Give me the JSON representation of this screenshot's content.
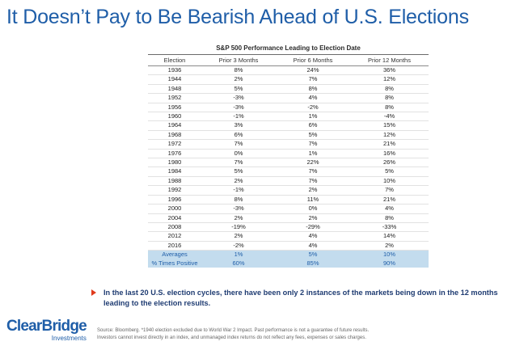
{
  "title": "It Doesn’t Pay to Be Bearish Ahead of U.S. Elections",
  "table": {
    "heading": "S&P 500 Performance Leading to Election Date",
    "columns": [
      "Election",
      "Prior 3 Months",
      "Prior 6 Months",
      "Prior 12 Months"
    ],
    "rows": [
      [
        "1936",
        "8%",
        "24%",
        "36%"
      ],
      [
        "1944",
        "2%",
        "7%",
        "12%"
      ],
      [
        "1948",
        "5%",
        "8%",
        "8%"
      ],
      [
        "1952",
        "-3%",
        "4%",
        "8%"
      ],
      [
        "1956",
        "-3%",
        "-2%",
        "8%"
      ],
      [
        "1960",
        "-1%",
        "1%",
        "-4%"
      ],
      [
        "1964",
        "3%",
        "6%",
        "15%"
      ],
      [
        "1968",
        "6%",
        "5%",
        "12%"
      ],
      [
        "1972",
        "7%",
        "7%",
        "21%"
      ],
      [
        "1976",
        "0%",
        "1%",
        "16%"
      ],
      [
        "1980",
        "7%",
        "22%",
        "26%"
      ],
      [
        "1984",
        "5%",
        "7%",
        "5%"
      ],
      [
        "1988",
        "2%",
        "7%",
        "10%"
      ],
      [
        "1992",
        "-1%",
        "2%",
        "7%"
      ],
      [
        "1996",
        "8%",
        "11%",
        "21%"
      ],
      [
        "2000",
        "-3%",
        "0%",
        "4%"
      ],
      [
        "2004",
        "2%",
        "2%",
        "8%"
      ],
      [
        "2008",
        "-19%",
        "-29%",
        "-33%"
      ],
      [
        "2012",
        "2%",
        "4%",
        "14%"
      ],
      [
        "2016",
        "-2%",
        "4%",
        "2%"
      ]
    ],
    "summary": [
      [
        "Averages",
        "1%",
        "5%",
        "10%"
      ],
      [
        "% Times Positive",
        "60%",
        "85%",
        "90%"
      ]
    ]
  },
  "callout": "In the last 20 U.S. election cycles, there have been only 2 instances of the markets being down in the 12 months leading to the election results.",
  "logo": {
    "main": "ClearBridge",
    "sub": "Investments"
  },
  "source_lines": [
    "Source: Bloomberg. *1940 election excluded due to World War 2 Impact. Past performance is not a guarantee of future results.",
    "Investors cannot invest directly in an index, and unmanaged index returns do not reflect any fees, expenses or sales charges."
  ],
  "colors": {
    "title": "#1f5ea8",
    "summary_band": "#c3dcee",
    "arrow": "#e03a1c",
    "callout_text": "#1f3c72"
  }
}
